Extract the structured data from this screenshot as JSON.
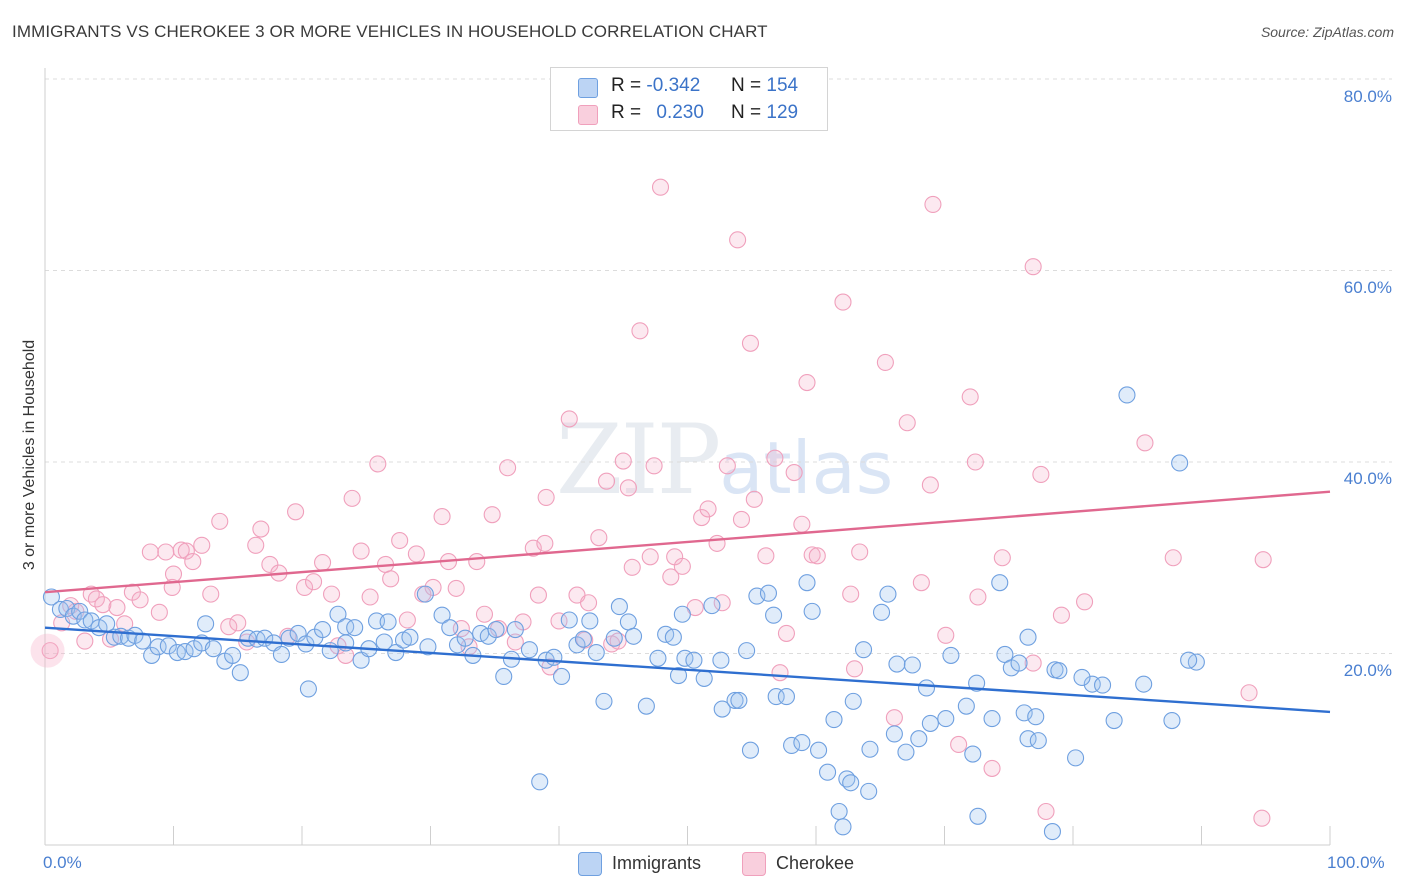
{
  "header": {
    "title": "IMMIGRANTS VS CHEROKEE 3 OR MORE VEHICLES IN HOUSEHOLD CORRELATION CHART",
    "source": "Source: ZipAtlas.com"
  },
  "watermark": {
    "zip": "ZIP",
    "atlas": "atlas"
  },
  "legend": {
    "immigrants": {
      "r_label": "R =",
      "r_value": "-0.342",
      "n_label": "N =",
      "n_value": "154"
    },
    "cherokee": {
      "r_label": "R =",
      "r_value": "0.230",
      "n_label": "N =",
      "n_value": "129"
    }
  },
  "chart_data": {
    "type": "scatter",
    "title": "IMMIGRANTS VS CHEROKEE 3 OR MORE VEHICLES IN HOUSEHOLD CORRELATION CHART",
    "xlabel": "",
    "ylabel": "3 or more Vehicles in Household",
    "xlim": [
      0,
      100
    ],
    "ylim": [
      0,
      82
    ],
    "x_tick_labels": [
      "0.0%",
      "100.0%"
    ],
    "y_tick_labels": [
      "20.0%",
      "40.0%",
      "60.0%",
      "80.0%"
    ],
    "y_ticks": [
      20,
      40,
      60,
      80
    ],
    "grid": true,
    "colors": {
      "immigrants": "#6fa0e0",
      "immigrants_line": "#2f6fd0",
      "cherokee": "#f0a0bc",
      "cherokee_line": "#e0688f",
      "tick": "#4a7fd0"
    },
    "series": [
      {
        "name": "Immigrants",
        "trend": {
          "x": [
            0,
            100
          ],
          "y": [
            22.7,
            13.9
          ]
        },
        "points": [
          [
            0.5,
            25.9
          ],
          [
            1.2,
            24.6
          ],
          [
            1.7,
            24.7
          ],
          [
            2.2,
            23.9
          ],
          [
            2.7,
            24.4
          ],
          [
            3.1,
            23.5
          ],
          [
            3.6,
            23.4
          ],
          [
            4.2,
            22.7
          ],
          [
            4.8,
            23.1
          ],
          [
            5.4,
            21.7
          ],
          [
            5.9,
            21.8
          ],
          [
            6.5,
            21.6
          ],
          [
            7.0,
            21.9
          ],
          [
            7.6,
            21.3
          ],
          [
            8.3,
            19.8
          ],
          [
            8.8,
            20.7
          ],
          [
            9.6,
            20.8
          ],
          [
            10.3,
            20.1
          ],
          [
            10.9,
            20.2
          ],
          [
            11.6,
            20.5
          ],
          [
            12.2,
            21.1
          ],
          [
            12.5,
            23.1
          ],
          [
            13.1,
            20.5
          ],
          [
            14.0,
            19.2
          ],
          [
            14.6,
            19.8
          ],
          [
            15.2,
            18.0
          ],
          [
            15.8,
            21.6
          ],
          [
            16.5,
            21.5
          ],
          [
            17.1,
            21.6
          ],
          [
            17.8,
            21.1
          ],
          [
            18.4,
            19.9
          ],
          [
            19.0,
            21.6
          ],
          [
            19.7,
            22.1
          ],
          [
            20.3,
            21.0
          ],
          [
            20.5,
            16.3
          ],
          [
            21.0,
            21.7
          ],
          [
            21.6,
            22.5
          ],
          [
            22.2,
            20.3
          ],
          [
            22.8,
            24.1
          ],
          [
            23.4,
            22.8
          ],
          [
            23.4,
            21.1
          ],
          [
            24.1,
            22.7
          ],
          [
            24.6,
            19.3
          ],
          [
            25.2,
            20.5
          ],
          [
            25.8,
            23.4
          ],
          [
            26.4,
            21.2
          ],
          [
            26.7,
            23.3
          ],
          [
            27.3,
            20.1
          ],
          [
            27.9,
            21.4
          ],
          [
            28.4,
            21.7
          ],
          [
            29.6,
            26.2
          ],
          [
            29.8,
            20.7
          ],
          [
            30.9,
            24.0
          ],
          [
            31.5,
            22.7
          ],
          [
            32.1,
            20.9
          ],
          [
            32.7,
            21.6
          ],
          [
            33.3,
            19.8
          ],
          [
            33.9,
            22.1
          ],
          [
            34.5,
            21.8
          ],
          [
            35.1,
            22.5
          ],
          [
            35.7,
            17.6
          ],
          [
            36.3,
            19.4
          ],
          [
            36.6,
            22.5
          ],
          [
            37.7,
            20.4
          ],
          [
            38.5,
            6.6
          ],
          [
            39.0,
            19.3
          ],
          [
            39.6,
            19.6
          ],
          [
            40.2,
            17.6
          ],
          [
            40.8,
            23.5
          ],
          [
            41.4,
            20.9
          ],
          [
            41.9,
            21.5
          ],
          [
            42.4,
            23.4
          ],
          [
            42.9,
            20.1
          ],
          [
            43.5,
            15.0
          ],
          [
            44.3,
            21.6
          ],
          [
            44.7,
            24.9
          ],
          [
            45.4,
            23.3
          ],
          [
            45.8,
            21.8
          ],
          [
            46.8,
            14.5
          ],
          [
            47.7,
            19.5
          ],
          [
            48.3,
            22.0
          ],
          [
            48.9,
            21.7
          ],
          [
            49.3,
            17.7
          ],
          [
            49.6,
            24.1
          ],
          [
            49.8,
            19.5
          ],
          [
            50.5,
            19.3
          ],
          [
            51.3,
            17.4
          ],
          [
            51.9,
            25.0
          ],
          [
            52.6,
            19.3
          ],
          [
            52.7,
            14.2
          ],
          [
            53.7,
            15.1
          ],
          [
            54.0,
            15.1
          ],
          [
            54.6,
            20.3
          ],
          [
            54.9,
            9.9
          ],
          [
            55.4,
            26.0
          ],
          [
            56.3,
            26.3
          ],
          [
            56.7,
            24.0
          ],
          [
            56.9,
            15.5
          ],
          [
            57.7,
            15.5
          ],
          [
            58.1,
            10.4
          ],
          [
            58.9,
            10.7
          ],
          [
            59.3,
            27.4
          ],
          [
            59.7,
            24.4
          ],
          [
            60.2,
            9.9
          ],
          [
            60.9,
            7.6
          ],
          [
            61.4,
            13.1
          ],
          [
            61.8,
            3.5
          ],
          [
            62.1,
            1.9
          ],
          [
            62.4,
            6.9
          ],
          [
            62.7,
            6.5
          ],
          [
            62.9,
            15.0
          ],
          [
            63.7,
            20.4
          ],
          [
            64.1,
            5.6
          ],
          [
            64.2,
            10.0
          ],
          [
            65.1,
            24.3
          ],
          [
            65.6,
            26.2
          ],
          [
            66.1,
            11.6
          ],
          [
            66.3,
            18.9
          ],
          [
            67.0,
            9.7
          ],
          [
            67.5,
            18.8
          ],
          [
            68.0,
            11.1
          ],
          [
            68.6,
            16.4
          ],
          [
            68.9,
            12.7
          ],
          [
            70.1,
            13.2
          ],
          [
            70.5,
            19.8
          ],
          [
            71.7,
            14.5
          ],
          [
            72.2,
            9.5
          ],
          [
            72.5,
            16.9
          ],
          [
            73.7,
            13.2
          ],
          [
            74.3,
            27.4
          ],
          [
            74.7,
            19.9
          ],
          [
            75.2,
            18.5
          ],
          [
            75.8,
            19.0
          ],
          [
            76.2,
            13.8
          ],
          [
            76.5,
            11.1
          ],
          [
            76.5,
            21.7
          ],
          [
            77.3,
            10.9
          ],
          [
            78.6,
            18.3
          ],
          [
            77.1,
            13.4
          ],
          [
            78.4,
            1.4
          ],
          [
            78.9,
            18.2
          ],
          [
            80.2,
            9.1
          ],
          [
            81.5,
            16.8
          ],
          [
            82.3,
            16.7
          ],
          [
            89.6,
            19.1
          ],
          [
            80.7,
            17.5
          ],
          [
            83.2,
            13.0
          ],
          [
            84.2,
            47.0
          ],
          [
            85.5,
            16.8
          ],
          [
            87.7,
            13.0
          ],
          [
            88.3,
            39.9
          ],
          [
            89.0,
            19.3
          ],
          [
            72.6,
            3.0
          ]
        ]
      },
      {
        "name": "Cherokee",
        "trend": {
          "x": [
            0,
            100
          ],
          "y": [
            26.4,
            36.9
          ]
        },
        "points": [
          [
            0.4,
            20.3
          ],
          [
            1.3,
            23.2
          ],
          [
            2.0,
            25.0
          ],
          [
            2.4,
            24.4
          ],
          [
            3.1,
            21.3
          ],
          [
            3.6,
            26.2
          ],
          [
            4.0,
            25.7
          ],
          [
            4.5,
            25.1
          ],
          [
            5.1,
            21.5
          ],
          [
            5.6,
            24.8
          ],
          [
            6.2,
            23.1
          ],
          [
            6.8,
            26.4
          ],
          [
            7.4,
            25.6
          ],
          [
            8.2,
            30.6
          ],
          [
            8.9,
            24.3
          ],
          [
            9.4,
            30.6
          ],
          [
            9.9,
            26.9
          ],
          [
            10.0,
            28.3
          ],
          [
            10.6,
            30.8
          ],
          [
            11.0,
            30.7
          ],
          [
            11.5,
            29.6
          ],
          [
            12.2,
            31.3
          ],
          [
            12.9,
            26.2
          ],
          [
            13.6,
            33.8
          ],
          [
            14.3,
            22.8
          ],
          [
            15.0,
            23.2
          ],
          [
            15.7,
            21.2
          ],
          [
            16.4,
            31.3
          ],
          [
            16.8,
            33.0
          ],
          [
            17.5,
            29.3
          ],
          [
            18.2,
            28.4
          ],
          [
            18.9,
            21.8
          ],
          [
            19.5,
            34.8
          ],
          [
            20.2,
            26.9
          ],
          [
            20.9,
            27.5
          ],
          [
            21.6,
            29.5
          ],
          [
            22.3,
            26.2
          ],
          [
            22.8,
            20.8
          ],
          [
            23.4,
            19.8
          ],
          [
            23.9,
            36.2
          ],
          [
            24.6,
            30.7
          ],
          [
            25.3,
            25.9
          ],
          [
            25.9,
            39.8
          ],
          [
            26.5,
            29.3
          ],
          [
            26.9,
            27.8
          ],
          [
            27.6,
            31.8
          ],
          [
            28.2,
            23.5
          ],
          [
            28.9,
            30.4
          ],
          [
            29.4,
            26.2
          ],
          [
            30.2,
            26.9
          ],
          [
            30.9,
            34.3
          ],
          [
            31.4,
            29.6
          ],
          [
            32.0,
            26.8
          ],
          [
            32.4,
            22.6
          ],
          [
            33.0,
            20.7
          ],
          [
            33.6,
            29.6
          ],
          [
            34.2,
            24.1
          ],
          [
            34.8,
            34.5
          ],
          [
            35.3,
            22.6
          ],
          [
            36.0,
            39.4
          ],
          [
            36.6,
            21.2
          ],
          [
            37.2,
            23.3
          ],
          [
            38.0,
            31.0
          ],
          [
            38.4,
            26.1
          ],
          [
            38.9,
            31.5
          ],
          [
            39.0,
            36.3
          ],
          [
            39.3,
            18.6
          ],
          [
            40.0,
            23.4
          ],
          [
            40.8,
            44.5
          ],
          [
            41.4,
            26.1
          ],
          [
            42.0,
            21.4
          ],
          [
            42.3,
            25.3
          ],
          [
            43.1,
            32.1
          ],
          [
            43.7,
            38.0
          ],
          [
            44.1,
            21.0
          ],
          [
            44.6,
            21.3
          ],
          [
            45.0,
            40.1
          ],
          [
            45.4,
            37.3
          ],
          [
            45.7,
            29.0
          ],
          [
            46.3,
            53.7
          ],
          [
            47.1,
            30.1
          ],
          [
            47.4,
            39.6
          ],
          [
            47.9,
            68.7
          ],
          [
            48.7,
            28.0
          ],
          [
            49.0,
            30.1
          ],
          [
            49.6,
            29.1
          ],
          [
            50.6,
            24.8
          ],
          [
            51.1,
            34.2
          ],
          [
            51.6,
            35.1
          ],
          [
            52.3,
            31.5
          ],
          [
            52.7,
            25.3
          ],
          [
            53.1,
            39.6
          ],
          [
            53.9,
            63.2
          ],
          [
            54.2,
            34.0
          ],
          [
            54.9,
            52.4
          ],
          [
            55.2,
            36.1
          ],
          [
            56.1,
            30.2
          ],
          [
            56.8,
            40.4
          ],
          [
            57.2,
            18.0
          ],
          [
            57.7,
            22.1
          ],
          [
            58.3,
            38.9
          ],
          [
            58.9,
            33.5
          ],
          [
            59.3,
            48.3
          ],
          [
            59.7,
            30.3
          ],
          [
            60.1,
            30.2
          ],
          [
            62.1,
            56.7
          ],
          [
            62.7,
            26.2
          ],
          [
            63.0,
            18.4
          ],
          [
            63.4,
            30.6
          ],
          [
            65.4,
            50.4
          ],
          [
            66.1,
            13.3
          ],
          [
            67.1,
            44.1
          ],
          [
            68.2,
            27.4
          ],
          [
            68.9,
            37.6
          ],
          [
            69.1,
            66.9
          ],
          [
            71.1,
            10.5
          ],
          [
            72.0,
            46.8
          ],
          [
            72.4,
            40.0
          ],
          [
            72.6,
            25.9
          ],
          [
            73.7,
            8.0
          ],
          [
            74.5,
            30.0
          ],
          [
            76.9,
            60.4
          ],
          [
            76.9,
            19.0
          ],
          [
            77.5,
            38.7
          ],
          [
            79.1,
            24.0
          ],
          [
            80.9,
            25.4
          ],
          [
            85.6,
            42.0
          ],
          [
            87.8,
            30.0
          ],
          [
            94.8,
            29.8
          ],
          [
            94.7,
            2.8
          ],
          [
            93.7,
            15.9
          ],
          [
            70.1,
            21.9
          ],
          [
            77.9,
            3.5
          ]
        ]
      }
    ]
  },
  "bottom_legend": {
    "immigrants": "Immigrants",
    "cherokee": "Cherokee"
  }
}
